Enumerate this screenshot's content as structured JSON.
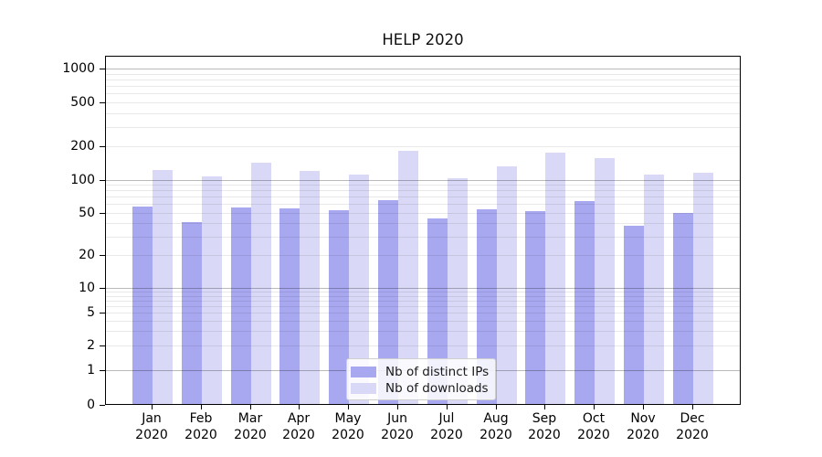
{
  "title": "HELP 2020",
  "legend": {
    "items": [
      {
        "label": "Nb of distinct IPs",
        "color": "#a8a8f0"
      },
      {
        "label": "Nb of downloads",
        "color": "#d9d9f7"
      }
    ]
  },
  "chart_data": {
    "type": "bar",
    "title": "HELP 2020",
    "categories": [
      "Jan 2020",
      "Feb 2020",
      "Mar 2020",
      "Apr 2020",
      "May 2020",
      "Jun 2020",
      "Jul 2020",
      "Aug 2020",
      "Sep 2020",
      "Oct 2020",
      "Nov 2020",
      "Dec 2020"
    ],
    "series": [
      {
        "name": "Nb of distinct IPs",
        "color": "#a8a8f0",
        "values": [
          56,
          40,
          55,
          54,
          52,
          64,
          43,
          53,
          51,
          62,
          37,
          49
        ]
      },
      {
        "name": "Nb of downloads",
        "color": "#d9d9f7",
        "values": [
          121,
          105,
          140,
          118,
          109,
          180,
          101,
          130,
          172,
          154,
          109,
          114
        ]
      }
    ],
    "yaxis": {
      "scale": "log-like (asinh, linear below 1)",
      "tick_labels": [
        "0",
        "1",
        "2",
        "5",
        "10",
        "20",
        "50",
        "100",
        "200",
        "500",
        "1000"
      ],
      "tick_values": [
        0,
        1,
        2,
        5,
        10,
        20,
        50,
        100,
        200,
        500,
        1000
      ],
      "ylim": [
        0,
        1300
      ],
      "grid": true,
      "major_grid_at": [
        1,
        10,
        100,
        1000
      ],
      "minor_grid_decades": [
        1,
        10,
        100
      ]
    },
    "xlabel": "",
    "ylabel": "",
    "legend_position": "lower center"
  }
}
